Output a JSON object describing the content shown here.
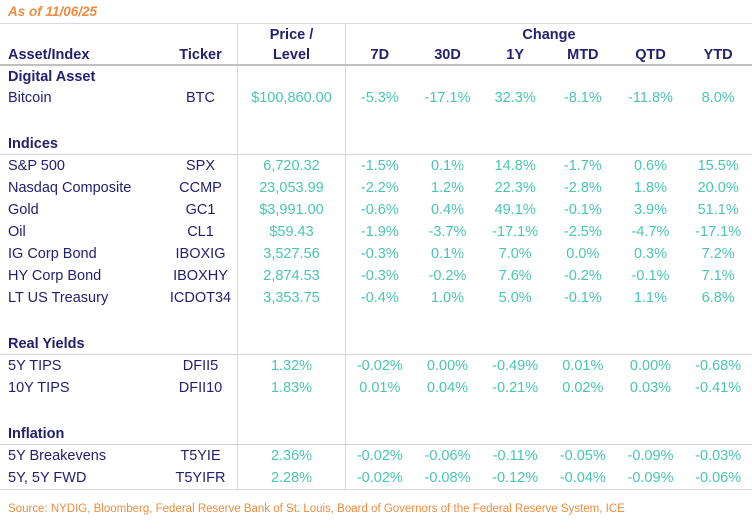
{
  "meta": {
    "as_of_label": "As of 11/06/25",
    "source_label": "Source: NYDIG, Bloomberg, Federal Reserve Bank of St. Louis, Board of Governors of the Federal Reserve System, ICE"
  },
  "colors": {
    "navy": "#23216e",
    "teal": "#49c6b1",
    "orange": "#ee8c3f",
    "grid": "#d9d9d9",
    "rule": "#c0c0c0",
    "sectionrule": "#d2d2d2"
  },
  "chart_data": {
    "type": "table",
    "title": "As of 11/06/25",
    "header": {
      "asset": "Asset/Index",
      "ticker": "Ticker",
      "price_line1": "Price /",
      "price_line2": "Level",
      "change_group": "Change",
      "periods": [
        "7D",
        "30D",
        "1Y",
        "MTD",
        "QTD",
        "YTD"
      ]
    },
    "sections": [
      {
        "label": "Digital Asset",
        "rows": [
          {
            "asset": "Bitcoin",
            "ticker": "BTC",
            "price": "$100,860.00",
            "changes": [
              "-5.3%",
              "-17.1%",
              "32.3%",
              "-8.1%",
              "-11.8%",
              "8.0%"
            ]
          }
        ]
      },
      {
        "label": "Indices",
        "rows": [
          {
            "asset": "S&P 500",
            "ticker": "SPX",
            "price": "6,720.32",
            "changes": [
              "-1.5%",
              "0.1%",
              "14.8%",
              "-1.7%",
              "0.6%",
              "15.5%"
            ]
          },
          {
            "asset": "Nasdaq Composite",
            "ticker": "CCMP",
            "price": "23,053.99",
            "changes": [
              "-2.2%",
              "1.2%",
              "22.3%",
              "-2.8%",
              "1.8%",
              "20.0%"
            ]
          },
          {
            "asset": "Gold",
            "ticker": "GC1",
            "price": "$3,991.00",
            "changes": [
              "-0.6%",
              "0.4%",
              "49.1%",
              "-0.1%",
              "3.9%",
              "51.1%"
            ]
          },
          {
            "asset": "Oil",
            "ticker": "CL1",
            "price": "$59.43",
            "changes": [
              "-1.9%",
              "-3.7%",
              "-17.1%",
              "-2.5%",
              "-4.7%",
              "-17.1%"
            ]
          },
          {
            "asset": "IG Corp Bond",
            "ticker": "IBOXIG",
            "price": "3,527.56",
            "changes": [
              "-0.3%",
              "0.1%",
              "7.0%",
              "0.0%",
              "0.3%",
              "7.2%"
            ]
          },
          {
            "asset": "HY Corp Bond",
            "ticker": "IBOXHY",
            "price": "2,874.53",
            "changes": [
              "-0.3%",
              "-0.2%",
              "7.6%",
              "-0.2%",
              "-0.1%",
              "7.1%"
            ]
          },
          {
            "asset": "LT US Treasury",
            "ticker": "ICDOT34",
            "price": "3,353.75",
            "changes": [
              "-0.4%",
              "1.0%",
              "5.0%",
              "-0.1%",
              "1.1%",
              "6.8%"
            ]
          }
        ]
      },
      {
        "label": "Real Yields",
        "rows": [
          {
            "asset": "5Y TIPS",
            "ticker": "DFII5",
            "price": "1.32%",
            "changes": [
              "-0.02%",
              "0.00%",
              "-0.49%",
              "0.01%",
              "0.00%",
              "-0.68%"
            ]
          },
          {
            "asset": "10Y TIPS",
            "ticker": "DFII10",
            "price": "1.83%",
            "changes": [
              "0.01%",
              "0.04%",
              "-0.21%",
              "0.02%",
              "0.03%",
              "-0.41%"
            ]
          }
        ]
      },
      {
        "label": "Inflation",
        "rows": [
          {
            "asset": "5Y Breakevens",
            "ticker": "T5YIE",
            "price": "2.36%",
            "changes": [
              "-0.02%",
              "-0.06%",
              "-0.11%",
              "-0.05%",
              "-0.09%",
              "-0.03%"
            ]
          },
          {
            "asset": "5Y, 5Y FWD",
            "ticker": "T5YIFR",
            "price": "2.28%",
            "changes": [
              "-0.02%",
              "-0.08%",
              "-0.12%",
              "-0.04%",
              "-0.09%",
              "-0.06%"
            ]
          }
        ]
      }
    ]
  }
}
